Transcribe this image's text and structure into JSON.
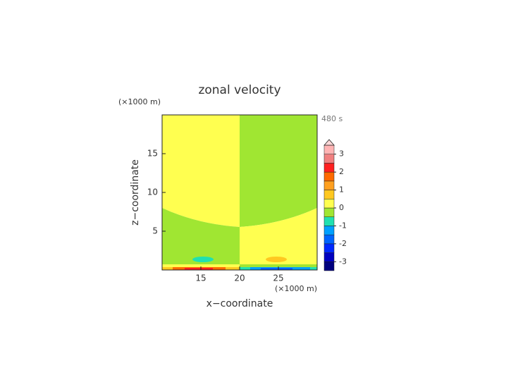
{
  "chart_data": {
    "type": "contour",
    "title": "zonal velocity",
    "time_label": "480 s",
    "x_label": "x−coordinate",
    "y_label": "z−coordinate",
    "x_unit": "(×1000 m)",
    "y_unit": "(×1000 m)",
    "xlim": [
      10,
      30
    ],
    "xticks": [
      15,
      20,
      25
    ],
    "ylim": [
      0,
      20
    ],
    "yticks": [
      5,
      10,
      15
    ],
    "colorbar": {
      "levels": [
        -3.5,
        -3,
        -2.5,
        -2,
        -1.5,
        -1,
        -0.5,
        0,
        0.5,
        1,
        1.5,
        2,
        2.5,
        3,
        3.5
      ],
      "colors": [
        "#00007f",
        "#0000c0",
        "#0028ff",
        "#0064ff",
        "#00a0ff",
        "#20e0b0",
        "#a0e632",
        "#ffff50",
        "#ffc820",
        "#ffa020",
        "#ff6a00",
        "#ff2020",
        "#f08080",
        "#ffb4b4"
      ],
      "extend_color": "#ffd8d8",
      "ticks": [
        -3,
        -2,
        -1,
        0,
        1,
        2,
        3
      ]
    }
  }
}
